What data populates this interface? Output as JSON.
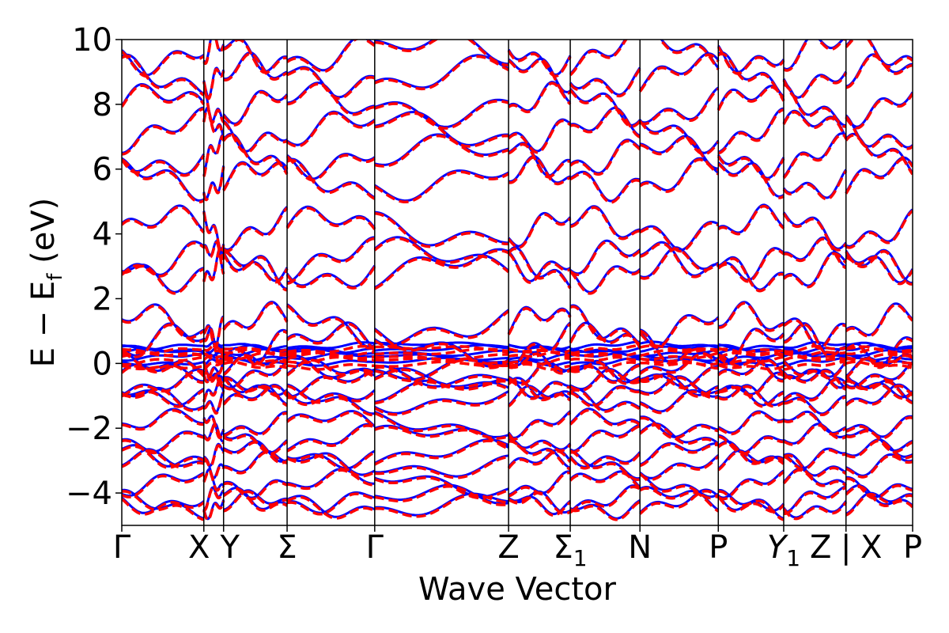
{
  "chart_data": {
    "type": "line",
    "title": "",
    "xlabel": "Wave Vector",
    "ylabel_main": "E − E",
    "ylabel_sub": "f",
    "ylabel_unit": " (eV)",
    "ylim": [
      -5,
      10
    ],
    "yticks": [
      -4,
      -2,
      0,
      2,
      4,
      6,
      8,
      10
    ],
    "ytick_labels": [
      "−4",
      "−2",
      "0",
      "2",
      "4",
      "6",
      "8",
      "10"
    ],
    "kpoints": [
      {
        "x": 0.0,
        "label": "Γ",
        "sub": ""
      },
      {
        "x": 0.133,
        "label": "X",
        "sub": ""
      },
      {
        "x": 0.165,
        "label": "Y",
        "sub": ""
      },
      {
        "x": 0.268,
        "label": "Σ",
        "sub": ""
      },
      {
        "x": 0.41,
        "label": "Γ",
        "sub": ""
      },
      {
        "x": 0.627,
        "label": "Z",
        "sub": ""
      },
      {
        "x": 0.727,
        "label": "Σ",
        "sub": "1"
      },
      {
        "x": 0.84,
        "label": "N",
        "sub": ""
      },
      {
        "x": 0.967,
        "label": "P",
        "sub": ""
      },
      {
        "x": 1.073,
        "label": "Y",
        "sub": "1"
      },
      {
        "x": 1.174,
        "label": "Z",
        "sub": ""
      },
      {
        "x": 1.174,
        "label": "|",
        "sub": ""
      },
      {
        "x": 1.174,
        "label": "X",
        "sub": ""
      },
      {
        "x": 1.282,
        "label": "P",
        "sub": ""
      }
    ],
    "series": [
      {
        "style": "solid",
        "color": "#0000ff"
      },
      {
        "style": "dashed",
        "color": "#ff0000"
      }
    ],
    "bands_valence": [
      -4.35,
      -4.2,
      -3.7,
      -3.1,
      -2.8,
      -2.3,
      -1.85,
      -1.1,
      -0.85,
      -0.6,
      -0.3,
      -0.1
    ],
    "bands_flat": [
      0.05,
      0.2,
      0.35,
      0.45,
      0.55
    ],
    "bands_conduction": [
      0.6,
      1.2,
      2.9,
      3.2,
      4.2,
      5.7,
      6.4,
      7.2,
      8.0,
      8.9,
      9.6
    ]
  }
}
